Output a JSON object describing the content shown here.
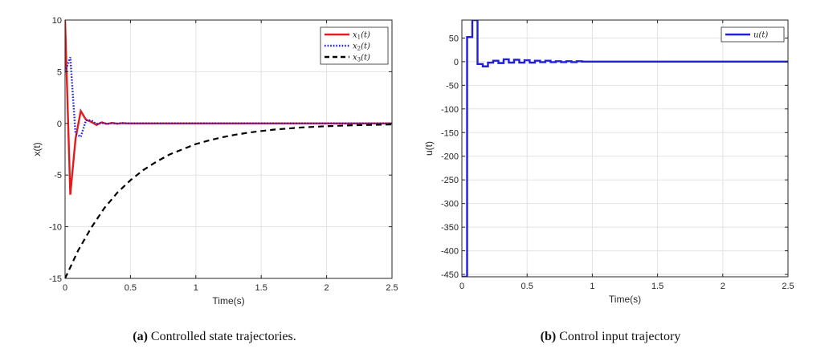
{
  "chart_data": [
    {
      "type": "line",
      "caption_label": "(a)",
      "caption_text": " Controlled state trajectories.",
      "xlabel": "Time(s)",
      "ylabel": "x(t)",
      "xlim": [
        0,
        2.5
      ],
      "ylim": [
        -15,
        10
      ],
      "xticks": [
        0,
        0.5,
        1,
        1.5,
        2,
        2.5
      ],
      "xtick_labels": [
        "0",
        "0.5",
        "1",
        "1.5",
        "2",
        "2.5"
      ],
      "yticks": [
        -15,
        -10,
        -5,
        0,
        5,
        10
      ],
      "ytick_labels": [
        "-15",
        "-10",
        "-5",
        "0",
        "5",
        "10"
      ],
      "grid": true,
      "legend_position": "top-right",
      "series": [
        {
          "name": "x",
          "name_sub": "1",
          "name_suffix": "(t)",
          "color": "#e41a1c",
          "style": "solid",
          "x": [
            0,
            0.04,
            0.08,
            0.12,
            0.16,
            0.2,
            0.24,
            0.28,
            0.32,
            0.36,
            0.4,
            0.44,
            0.48,
            0.6,
            0.8,
            1.0,
            1.5,
            2.0,
            2.5
          ],
          "y": [
            10,
            -6.9,
            -1.5,
            1.2,
            0.35,
            0.15,
            -0.15,
            0.1,
            -0.05,
            0.05,
            -0.03,
            0.03,
            0,
            0,
            0,
            0,
            0,
            0,
            0
          ]
        },
        {
          "name": "x",
          "name_sub": "2",
          "name_suffix": "(t)",
          "color": "#1f1fdd",
          "style": "dotted",
          "x": [
            0,
            0.04,
            0.08,
            0.12,
            0.16,
            0.2,
            0.24,
            0.28,
            0.32,
            0.36,
            0.4,
            0.44,
            0.48,
            0.6,
            0.8,
            1.0,
            1.5,
            2.0,
            2.5
          ],
          "y": [
            5,
            6.4,
            -1.0,
            -1.3,
            0.3,
            0.3,
            -0.05,
            0.05,
            -0.05,
            0.03,
            -0.02,
            0.02,
            0,
            0,
            0,
            0,
            0,
            0,
            0
          ]
        },
        {
          "name": "x",
          "name_sub": "3",
          "name_suffix": "(t)",
          "color": "#000000",
          "style": "dashed",
          "x": [
            0,
            0.1,
            0.2,
            0.3,
            0.4,
            0.5,
            0.6,
            0.7,
            0.8,
            0.9,
            1.0,
            1.1,
            1.2,
            1.3,
            1.4,
            1.5,
            1.6,
            1.8,
            2.0,
            2.2,
            2.5
          ],
          "y": [
            -15,
            -12.3,
            -10.1,
            -8.2,
            -6.7,
            -5.5,
            -4.5,
            -3.7,
            -3.0,
            -2.5,
            -2.0,
            -1.65,
            -1.35,
            -1.1,
            -0.9,
            -0.74,
            -0.6,
            -0.4,
            -0.27,
            -0.18,
            -0.1
          ]
        }
      ]
    },
    {
      "type": "line",
      "caption_label": "(b)",
      "caption_text": " Control input trajectory",
      "xlabel": "Time(s)",
      "ylabel": "u(t)",
      "xlim": [
        0,
        2.5
      ],
      "ylim": [
        -455,
        88
      ],
      "xticks": [
        0,
        0.5,
        1,
        1.5,
        2,
        2.5
      ],
      "xtick_labels": [
        "0",
        "0.5",
        "1",
        "1.5",
        "2",
        "2.5"
      ],
      "yticks": [
        -450,
        -400,
        -350,
        -300,
        -250,
        -200,
        -150,
        -100,
        -50,
        0,
        50
      ],
      "ytick_labels": [
        "-450",
        "-400",
        "-350",
        "-300",
        "-250",
        "-200",
        "-150",
        "-100",
        "-50",
        "0",
        "50"
      ],
      "grid": true,
      "legend_position": "top-right",
      "series": [
        {
          "name": "u",
          "name_sub": "",
          "name_suffix": "(t)",
          "color": "#1f1fdd",
          "style": "solid",
          "step": true,
          "x": [
            0,
            0.04,
            0.08,
            0.12,
            0.16,
            0.2,
            0.24,
            0.28,
            0.32,
            0.36,
            0.4,
            0.44,
            0.48,
            0.52,
            0.56,
            0.6,
            0.64,
            0.68,
            0.72,
            0.76,
            0.8,
            0.84,
            0.88,
            0.92,
            0.96,
            1.0,
            1.1,
            1.5,
            2.0,
            2.5
          ],
          "y": [
            -455,
            52,
            88,
            -5,
            -10,
            -2,
            2,
            -3,
            5,
            -2,
            4,
            -2,
            3,
            -2,
            2,
            -1,
            2,
            -1,
            1,
            -1,
            1,
            -1,
            1,
            0,
            0,
            0,
            0,
            0,
            0,
            0
          ]
        }
      ]
    }
  ]
}
